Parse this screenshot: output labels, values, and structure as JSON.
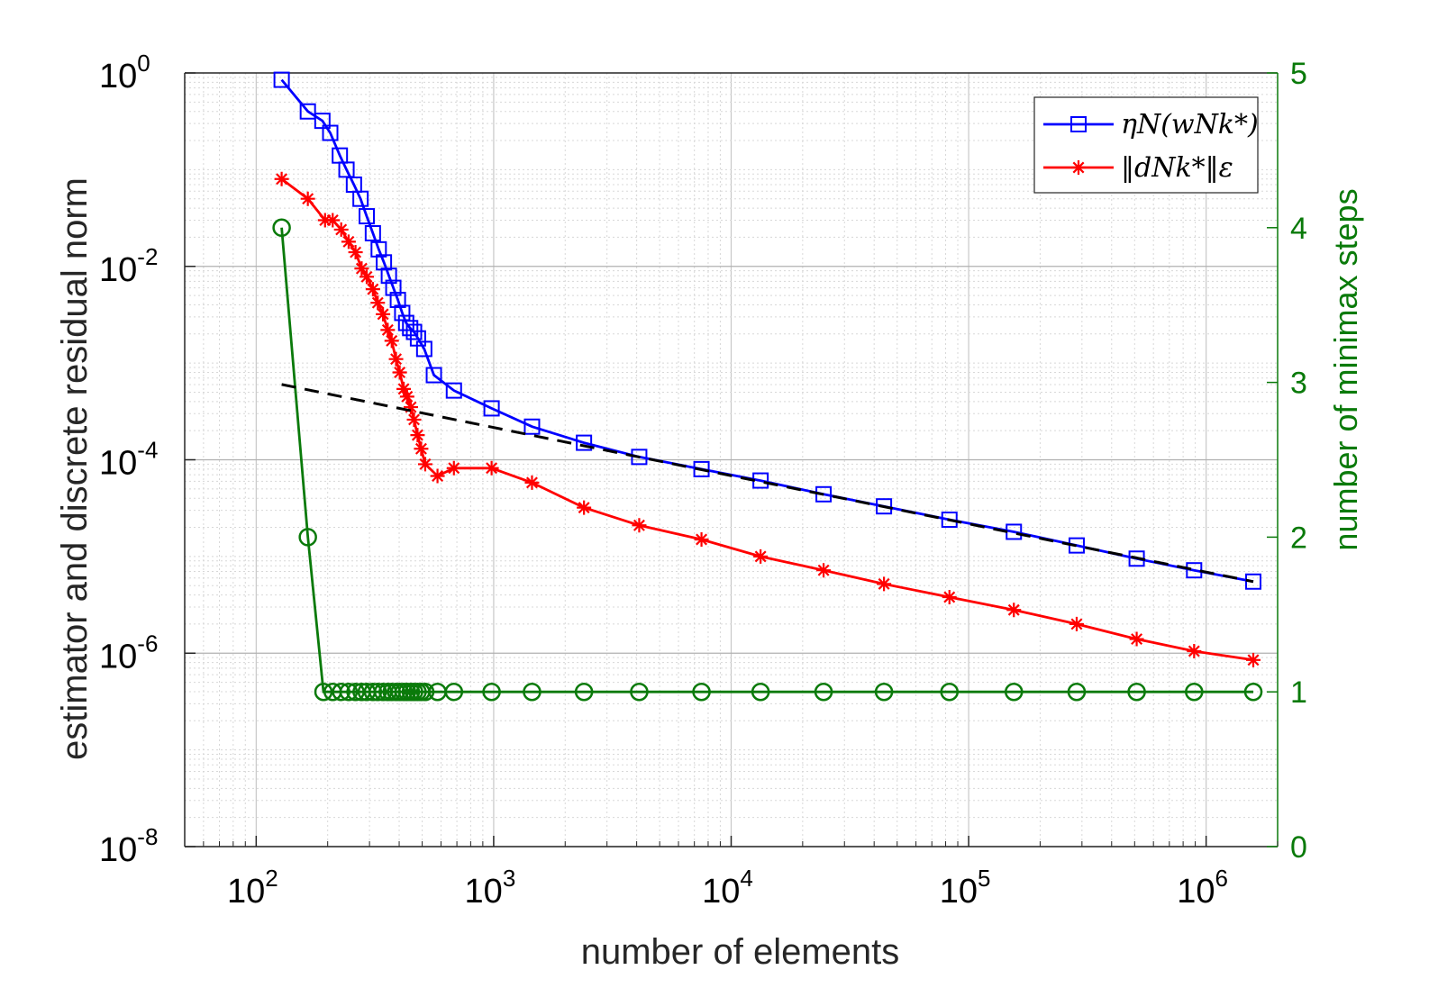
{
  "chart_data": {
    "type": "line",
    "x_scale": "log",
    "y_left_scale": "log",
    "xlim": [
      50,
      2000000
    ],
    "ylim_left": [
      1e-08,
      1
    ],
    "ylim_right": [
      0,
      5
    ],
    "xlabel": "number of elements",
    "ylabel_left": "estimator and discrete residual norm",
    "ylabel_right": "number of minimax steps",
    "x_ticks": [
      {
        "value": 100,
        "base": "10",
        "exp": "2"
      },
      {
        "value": 1000,
        "base": "10",
        "exp": "3"
      },
      {
        "value": 10000,
        "base": "10",
        "exp": "4"
      },
      {
        "value": 100000,
        "base": "10",
        "exp": "5"
      },
      {
        "value": 1000000,
        "base": "10",
        "exp": "6"
      }
    ],
    "y_left_ticks": [
      {
        "value": 1,
        "base": "10",
        "exp": "0"
      },
      {
        "value": 0.01,
        "base": "10",
        "exp": "-2"
      },
      {
        "value": 0.0001,
        "base": "10",
        "exp": "-4"
      },
      {
        "value": 1e-06,
        "base": "10",
        "exp": "-6"
      },
      {
        "value": 1e-08,
        "base": "10",
        "exp": "-8"
      }
    ],
    "y_right_ticks": [
      0,
      1,
      2,
      3,
      4,
      5
    ],
    "legend_position": "top-right",
    "series": [
      {
        "name": "estimator",
        "legend_label": "ηN(wNk*)",
        "axis": "left",
        "color": "#0000ff",
        "marker": "square",
        "x": [
          128,
          165,
          190,
          205,
          225,
          240,
          258,
          275,
          292,
          310,
          328,
          345,
          362,
          378,
          395,
          412,
          428,
          445,
          462,
          480,
          510,
          560,
          680,
          980,
          1450,
          2400,
          4100,
          7500,
          13300,
          24500,
          44000,
          83000,
          155000,
          285000,
          510000,
          890000,
          1580000
        ],
        "y": [
          0.85,
          0.4,
          0.32,
          0.24,
          0.14,
          0.1,
          0.07,
          0.05,
          0.033,
          0.022,
          0.015,
          0.011,
          0.008,
          0.006,
          0.0045,
          0.0033,
          0.0026,
          0.0023,
          0.0021,
          0.0018,
          0.0014,
          0.00075,
          0.00052,
          0.00034,
          0.00022,
          0.00015,
          0.000107,
          8e-05,
          6.1e-05,
          4.4e-05,
          3.3e-05,
          2.4e-05,
          1.8e-05,
          1.3e-05,
          9.5e-06,
          7.2e-06,
          5.5e-06
        ]
      },
      {
        "name": "residual",
        "legend_label": "‖dNk*‖ε",
        "axis": "left",
        "color": "#ff0000",
        "marker": "asterisk",
        "x": [
          128,
          165,
          195,
          210,
          228,
          245,
          262,
          278,
          292,
          310,
          325,
          342,
          358,
          372,
          388,
          402,
          418,
          432,
          448,
          462,
          478,
          495,
          515,
          580,
          680,
          980,
          1450,
          2400,
          4100,
          7500,
          13300,
          24500,
          44000,
          83000,
          155000,
          285000,
          510000,
          890000,
          1580000
        ],
        "y": [
          0.08,
          0.05,
          0.03,
          0.03,
          0.024,
          0.018,
          0.014,
          0.0095,
          0.0078,
          0.0058,
          0.0042,
          0.0032,
          0.0022,
          0.0017,
          0.0011,
          0.0008,
          0.00054,
          0.00045,
          0.00035,
          0.00026,
          0.00018,
          0.00013,
          9e-05,
          6.8e-05,
          8.2e-05,
          8.2e-05,
          5.8e-05,
          3.2e-05,
          2.1e-05,
          1.5e-05,
          1e-05,
          7.2e-06,
          5.2e-06,
          3.8e-06,
          2.8e-06,
          2e-06,
          1.4e-06,
          1.05e-06,
          8.5e-07
        ]
      },
      {
        "name": "minimax steps",
        "legend_label": "",
        "axis": "right",
        "color": "#0a7a0a",
        "marker": "circle",
        "x": [
          128,
          165,
          192,
          210,
          228,
          245,
          262,
          278,
          292,
          310,
          325,
          342,
          358,
          372,
          388,
          402,
          418,
          432,
          448,
          462,
          478,
          495,
          515,
          580,
          680,
          980,
          1450,
          2400,
          4100,
          7500,
          13300,
          24500,
          44000,
          83000,
          155000,
          285000,
          510000,
          890000,
          1580000
        ],
        "y": [
          4,
          2,
          1,
          1,
          1,
          1,
          1,
          1,
          1,
          1,
          1,
          1,
          1,
          1,
          1,
          1,
          1,
          1,
          1,
          1,
          1,
          1,
          1,
          1,
          1,
          1,
          1,
          1,
          1,
          1,
          1,
          1,
          1,
          1,
          1,
          1,
          1,
          1,
          1
        ]
      },
      {
        "name": "reference slope",
        "legend_label": "",
        "axis": "left",
        "color": "#000000",
        "style": "dashed",
        "x": [
          128,
          1580000
        ],
        "y": [
          0.0006,
          5.5e-06
        ]
      }
    ]
  }
}
